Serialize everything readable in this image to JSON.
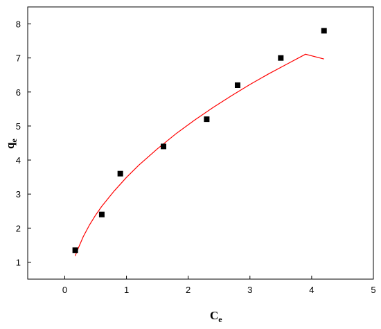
{
  "chart_data": {
    "type": "scatter",
    "title": "",
    "xlabel": {
      "main": "C",
      "sub": "e"
    },
    "ylabel": {
      "main": "q",
      "sub": "e"
    },
    "xlim": [
      -0.6,
      5
    ],
    "ylim": [
      0.5,
      8.5
    ],
    "xticks": [
      0,
      1,
      2,
      3,
      4,
      5
    ],
    "yticks": [
      1,
      2,
      3,
      4,
      5,
      6,
      7,
      8
    ],
    "grid": false,
    "legend": "none",
    "series": [
      {
        "kind": "points",
        "marker": "square",
        "color": "#000000",
        "x": [
          0.17,
          0.6,
          0.9,
          1.6,
          2.3,
          2.8,
          3.5,
          4.2
        ],
        "y": [
          1.35,
          2.4,
          3.6,
          4.4,
          5.2,
          6.2,
          7.0,
          7.8
        ]
      },
      {
        "kind": "fit-curve",
        "color": "#ff0000",
        "x": [
          0.17,
          0.2,
          0.3,
          0.4,
          0.5,
          0.6,
          0.8,
          1.0,
          1.2,
          1.5,
          1.8,
          2.1,
          2.4,
          2.7,
          3.0,
          3.3,
          3.6,
          3.9,
          4.2
        ],
        "y": [
          1.18,
          1.33,
          1.75,
          2.09,
          2.38,
          2.64,
          3.09,
          3.49,
          3.85,
          4.33,
          4.77,
          5.17,
          5.54,
          5.89,
          6.22,
          6.53,
          6.82,
          7.11,
          6.97
        ]
      }
    ]
  }
}
